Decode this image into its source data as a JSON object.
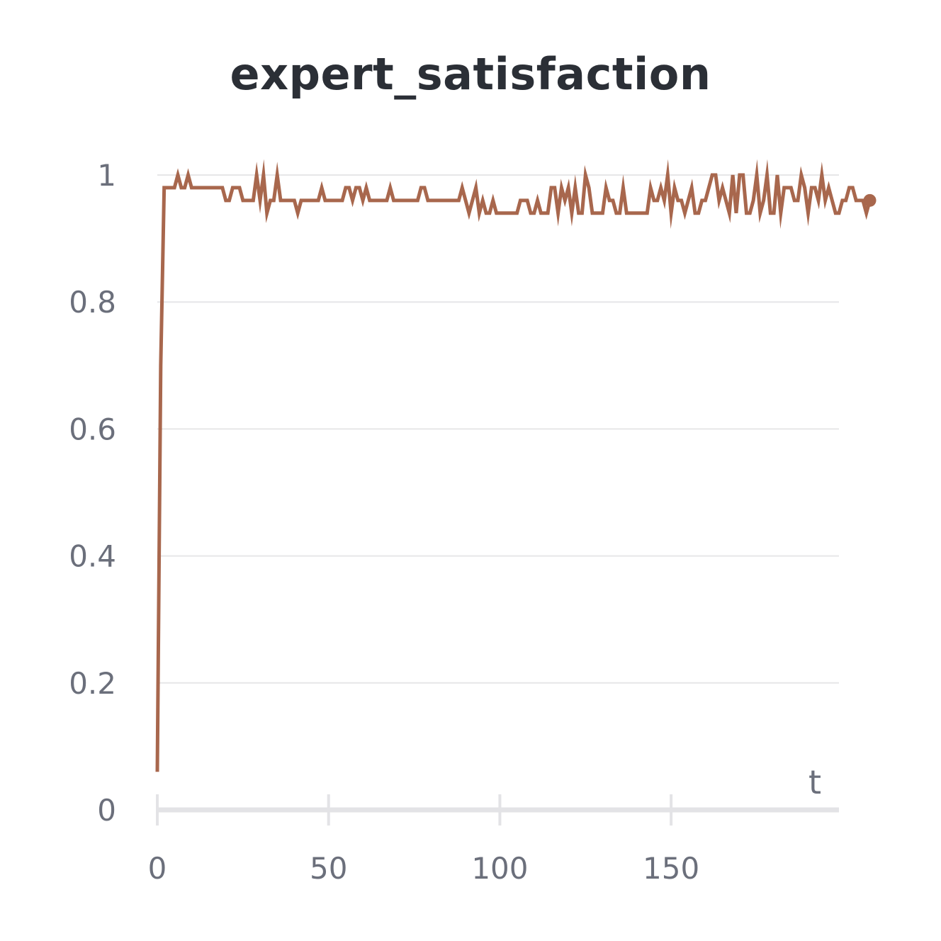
{
  "chart_data": {
    "type": "line",
    "title": "expert_satisfaction",
    "xlabel": "t",
    "ylabel": "",
    "xlim": [
      0,
      199
    ],
    "ylim": [
      0,
      1
    ],
    "x_ticks": [
      0,
      50,
      100,
      150
    ],
    "y_ticks": [
      0,
      0.2,
      0.4,
      0.6,
      0.8,
      1
    ],
    "y_tick_labels": [
      "0",
      "0.2",
      "0.4",
      "0.6",
      "0.8",
      "1"
    ],
    "grid": true,
    "line_color": "#a8674d",
    "series": [
      {
        "x_start": 0,
        "x_step": 1,
        "values": [
          0.06,
          0.7,
          0.98,
          0.98,
          0.98,
          0.98,
          1.0,
          0.98,
          0.98,
          1.0,
          0.98,
          0.98,
          0.98,
          0.98,
          0.98,
          0.98,
          0.98,
          0.98,
          0.98,
          0.98,
          0.96,
          0.96,
          0.98,
          0.98,
          0.98,
          0.96,
          0.96,
          0.96,
          0.96,
          1.0,
          0.96,
          1.0,
          0.94,
          0.96,
          0.96,
          1.0,
          0.96,
          0.96,
          0.96,
          0.96,
          0.96,
          0.94,
          0.96,
          0.96,
          0.96,
          0.96,
          0.96,
          0.96,
          0.98,
          0.96,
          0.96,
          0.96,
          0.96,
          0.96,
          0.96,
          0.98,
          0.98,
          0.96,
          0.98,
          0.98,
          0.96,
          0.98,
          0.96,
          0.96,
          0.96,
          0.96,
          0.96,
          0.96,
          0.98,
          0.96,
          0.96,
          0.96,
          0.96,
          0.96,
          0.96,
          0.96,
          0.96,
          0.98,
          0.98,
          0.96,
          0.96,
          0.96,
          0.96,
          0.96,
          0.96,
          0.96,
          0.96,
          0.96,
          0.96,
          0.98,
          0.96,
          0.94,
          0.96,
          0.98,
          0.94,
          0.96,
          0.94,
          0.94,
          0.96,
          0.94,
          0.94,
          0.94,
          0.94,
          0.94,
          0.94,
          0.94,
          0.96,
          0.96,
          0.96,
          0.94,
          0.94,
          0.96,
          0.94,
          0.94,
          0.94,
          0.98,
          0.98,
          0.94,
          0.98,
          0.96,
          0.98,
          0.94,
          0.98,
          0.94,
          0.94,
          1.0,
          0.98,
          0.94,
          0.94,
          0.94,
          0.94,
          0.98,
          0.96,
          0.96,
          0.94,
          0.94,
          0.98,
          0.94,
          0.94,
          0.94,
          0.94,
          0.94,
          0.94,
          0.94,
          0.98,
          0.96,
          0.96,
          0.98,
          0.96,
          1.0,
          0.94,
          0.98,
          0.96,
          0.96,
          0.94,
          0.96,
          0.98,
          0.94,
          0.94,
          0.96,
          0.96,
          0.98,
          1.0,
          1.0,
          0.96,
          0.98,
          0.96,
          0.94,
          1.0,
          0.94,
          1.0,
          1.0,
          0.94,
          0.94,
          0.96,
          1.0,
          0.94,
          0.96,
          1.0,
          0.94,
          0.94,
          1.0,
          0.94,
          0.98,
          0.98,
          0.98,
          0.96,
          0.96,
          1.0,
          0.98,
          0.94,
          0.98,
          0.98,
          0.96,
          1.0,
          0.96,
          0.98,
          0.96,
          0.94,
          0.94,
          0.96,
          0.96,
          0.98,
          0.98,
          0.96,
          0.96,
          0.96,
          0.94,
          0.96
        ]
      }
    ]
  }
}
